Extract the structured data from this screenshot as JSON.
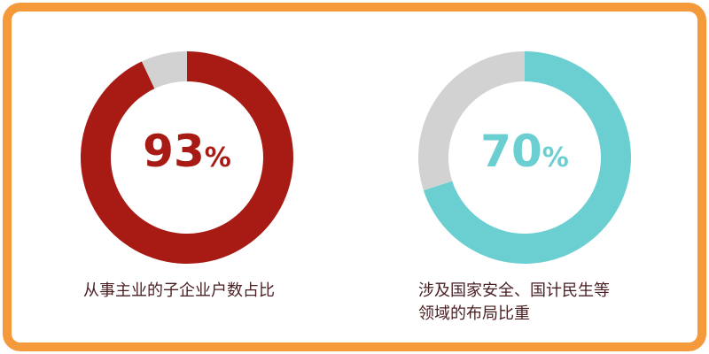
{
  "chart_data": [
    {
      "type": "pie",
      "variant": "donut",
      "values": [
        93,
        7
      ],
      "colors": [
        "#a81b15",
        "#d2d2d2"
      ],
      "center_label": {
        "value": "93",
        "unit": "%"
      },
      "center_color": "#a81b15",
      "caption": "从事主业的子企业户数占比"
    },
    {
      "type": "pie",
      "variant": "donut",
      "values": [
        70,
        30
      ],
      "colors": [
        "#6bcfd1",
        "#d2d2d2"
      ],
      "center_label": {
        "value": "70",
        "unit": "%"
      },
      "center_color": "#6bcfd1",
      "caption_lines": [
        "涉及国家安全、国计民生等",
        "领域的布局比重"
      ]
    }
  ],
  "border_color": "#f59a3b"
}
